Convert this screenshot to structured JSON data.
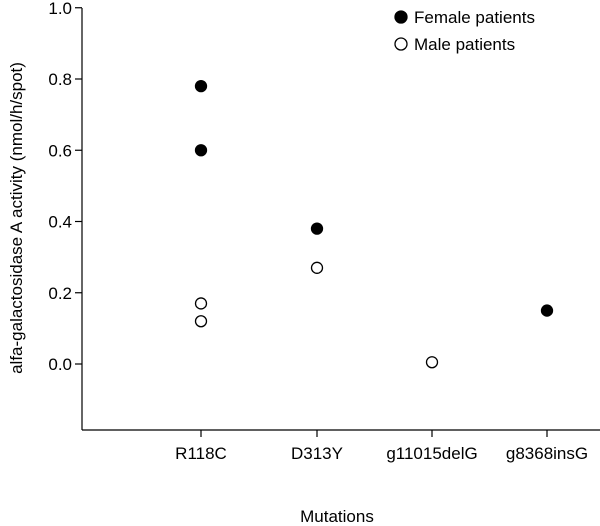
{
  "chart_data": {
    "type": "scatter",
    "title": "",
    "xlabel": "Mutations",
    "ylabel": "alfa-galactosidase A activity (nmol/h/spot)",
    "categories": [
      "R118C",
      "D313Y",
      "g11015delG",
      "g8368insG"
    ],
    "ylim": [
      -0.17,
      1.0
    ],
    "yticks": [
      "0.0",
      "0.2",
      "0.4",
      "0.6",
      "0.8",
      "1.0"
    ],
    "legend_position": "top-right",
    "grid": false,
    "series": [
      {
        "name": "Female patients",
        "marker": "filled-circle",
        "color": "#000000",
        "points": [
          {
            "x": "R118C",
            "y": 0.78
          },
          {
            "x": "R118C",
            "y": 0.6
          },
          {
            "x": "D313Y",
            "y": 0.38
          },
          {
            "x": "g8368insG",
            "y": 0.15
          }
        ]
      },
      {
        "name": "Male patients",
        "marker": "open-circle",
        "color": "#000000",
        "points": [
          {
            "x": "R118C",
            "y": 0.17
          },
          {
            "x": "R118C",
            "y": 0.12
          },
          {
            "x": "D313Y",
            "y": 0.27
          },
          {
            "x": "g11015delG",
            "y": 0.005
          }
        ]
      }
    ]
  }
}
